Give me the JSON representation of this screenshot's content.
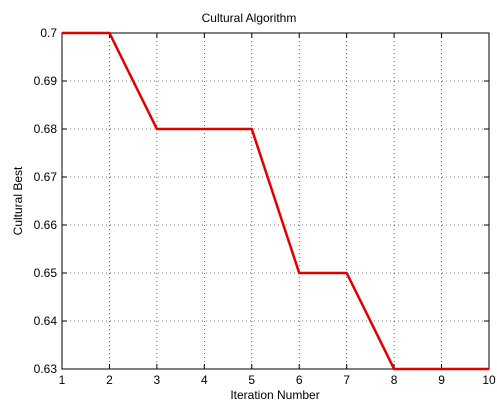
{
  "chart_data": {
    "type": "line",
    "title": "Cultural Algorithm",
    "xlabel": "Iteration Number",
    "ylabel": "Cultural Best",
    "xlim": [
      1,
      10
    ],
    "ylim": [
      0.63,
      0.7
    ],
    "x_ticks": [
      "1",
      "2",
      "3",
      "4",
      "5",
      "6",
      "7",
      "8",
      "9",
      "10"
    ],
    "y_ticks": [
      "0.63",
      "0.64",
      "0.65",
      "0.66",
      "0.67",
      "0.68",
      "0.69",
      "0.7"
    ],
    "grid": true,
    "series": [
      {
        "color": "#e00000",
        "x": [
          1,
          2,
          3,
          4,
          5,
          6,
          7,
          8,
          9,
          10
        ],
        "y": [
          0.7,
          0.7,
          0.68,
          0.68,
          0.68,
          0.65,
          0.65,
          0.63,
          0.63,
          0.63
        ]
      }
    ]
  }
}
